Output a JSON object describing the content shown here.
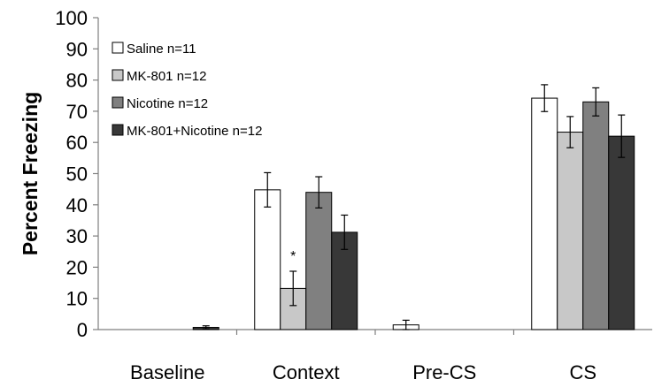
{
  "chart_data": {
    "type": "bar",
    "ylabel": "Percent Freezing",
    "xlabel": "",
    "ylim": [
      0,
      100
    ],
    "yticks": [
      "0",
      "10",
      "20",
      "30",
      "40",
      "50",
      "60",
      "70",
      "80",
      "90",
      "100"
    ],
    "categories": [
      "Baseline",
      "Context",
      "Pre-CS",
      "CS"
    ],
    "series": [
      {
        "name": "Saline n=11",
        "color": "#ffffff",
        "values": [
          0,
          44.8,
          1.5,
          74.2
        ],
        "errors": [
          0,
          5.5,
          1.5,
          4.3
        ]
      },
      {
        "name": "MK-801 n=12",
        "color": "#c8c8c8",
        "values": [
          0,
          13.2,
          0,
          63.3
        ],
        "errors": [
          0,
          5.5,
          0,
          5.0
        ]
      },
      {
        "name": "Nicotine n=12",
        "color": "#808080",
        "values": [
          0,
          44.0,
          0,
          73.0
        ],
        "errors": [
          0,
          5.0,
          0,
          4.5
        ]
      },
      {
        "name": "MK-801+Nicotine n=12",
        "color": "#383838",
        "values": [
          0.7,
          31.2,
          0,
          62.0
        ],
        "errors": [
          0.5,
          5.5,
          0,
          6.8
        ]
      }
    ],
    "annotations": [
      {
        "text": "*",
        "category": "Context",
        "series": "MK-801 n=12"
      }
    ],
    "legend_position": "top-left",
    "grid": false
  }
}
